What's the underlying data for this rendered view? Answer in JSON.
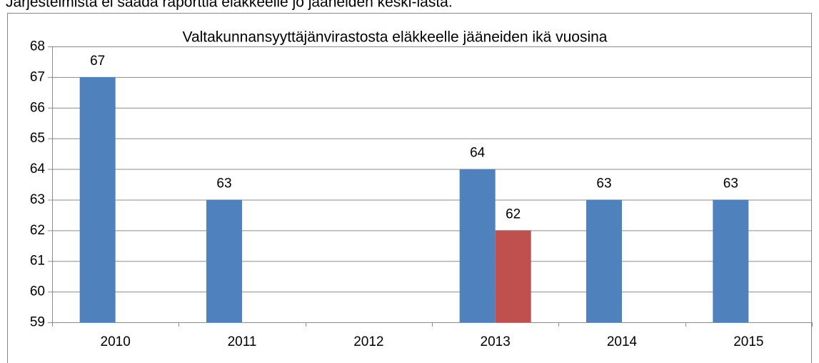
{
  "caption": "Järjestelmistä ei saada raporttia eläkkeelle jo jääneiden keski-iästä.",
  "chart_data": {
    "type": "bar",
    "title": "Valtakunnansyyttäjänvirastosta eläkkeelle jääneiden ikä vuosina",
    "categories": [
      "2010",
      "2011",
      "2012",
      "2013",
      "2014",
      "2015"
    ],
    "series": [
      {
        "color": "#4f81bd",
        "values": [
          67,
          63,
          null,
          64,
          63,
          63
        ]
      },
      {
        "color": "#c0504d",
        "values": [
          null,
          null,
          null,
          62,
          null,
          null
        ]
      }
    ],
    "ylim": [
      59,
      68
    ],
    "yticks": [
      59,
      60,
      61,
      62,
      63,
      64,
      65,
      66,
      67,
      68
    ],
    "grid": true
  }
}
